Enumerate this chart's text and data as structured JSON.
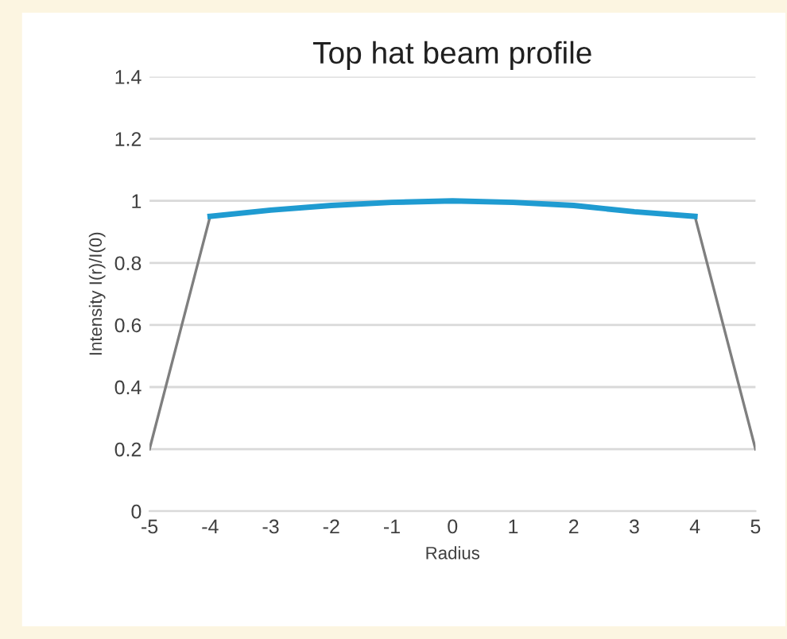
{
  "chart_data": {
    "type": "line",
    "title": "Top hat beam profile",
    "xlabel": "Radius",
    "ylabel": "Intensity I(r)/I(0)",
    "x": [
      -5,
      -4,
      -3,
      -2,
      -1,
      0,
      1,
      2,
      3,
      4,
      5
    ],
    "series": [
      {
        "color": "#7f7f7f",
        "values": [
          0.2,
          0.95,
          null,
          null,
          null,
          null,
          null,
          null,
          null,
          0.95,
          0.2
        ]
      },
      {
        "color": "#1f9bd1",
        "x": [
          -4,
          -3,
          -2,
          -1,
          0,
          1,
          2,
          3,
          4
        ],
        "values": [
          0.95,
          0.97,
          0.985,
          0.995,
          1.0,
          0.995,
          0.985,
          0.965,
          0.95
        ]
      }
    ],
    "xlim": [
      -5,
      5
    ],
    "xticks": [
      -5,
      -4,
      -3,
      -2,
      -1,
      0,
      1,
      2,
      3,
      4,
      5
    ],
    "ylim": [
      0,
      1.4
    ],
    "yticks": [
      0,
      0.2,
      0.4,
      0.6,
      0.8,
      1,
      1.2,
      1.4
    ],
    "grid": "y",
    "legend": false,
    "marker": "none",
    "line_style": "solid"
  }
}
